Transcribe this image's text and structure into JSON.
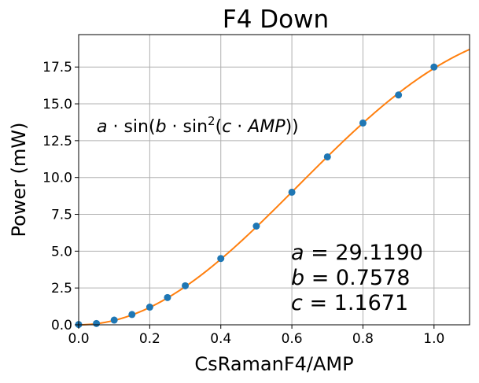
{
  "chart_data": {
    "type": "scatter",
    "title": "F4 Down",
    "xlabel": "CsRamanF4/AMP",
    "ylabel": "Power (mW)",
    "xlim": [
      0.0,
      1.1
    ],
    "ylim": [
      0.0,
      19.7
    ],
    "x_ticks": [
      "0.0",
      "0.2",
      "0.4",
      "0.6",
      "0.8",
      "1.0"
    ],
    "y_ticks": [
      "0.0",
      "2.5",
      "5.0",
      "7.5",
      "10.0",
      "12.5",
      "15.0",
      "17.5"
    ],
    "grid": true,
    "series": [
      {
        "kind": "points",
        "color": "#1f77b4",
        "x": [
          0.0,
          0.05,
          0.1,
          0.15,
          0.2,
          0.25,
          0.3,
          0.4,
          0.5,
          0.6,
          0.7,
          0.8,
          0.9,
          1.0
        ],
        "y": [
          0.02,
          0.09,
          0.32,
          0.7,
          1.2,
          1.85,
          2.65,
          4.5,
          6.7,
          9.0,
          11.4,
          13.7,
          15.6,
          17.5
        ]
      },
      {
        "kind": "fit-curve",
        "color": "#ff7f0e",
        "params": {
          "a": 29.119,
          "b": 0.7578,
          "c": 1.1671
        }
      }
    ],
    "annotations": {
      "formula": {
        "pre": "a",
        "dot1": " · sin(",
        "b": "b",
        "dot2": " · sin",
        "sup": "2",
        "open": "(",
        "c": "c",
        "dot3": " · ",
        "amp": "AMP",
        "close": "))"
      },
      "params": [
        {
          "sym": "a",
          "text": " = 29.1190"
        },
        {
          "sym": "b",
          "text": " = 0.7578"
        },
        {
          "sym": "c",
          "text": " = 1.1671"
        }
      ]
    }
  }
}
